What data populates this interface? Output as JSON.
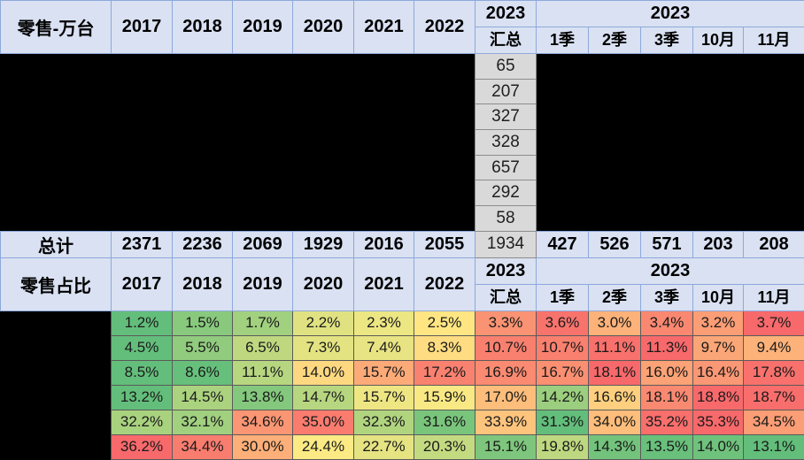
{
  "chart_data": {
    "type": "table",
    "volume_table": {
      "title": "零售-万台",
      "year_columns": [
        "2017",
        "2018",
        "2019",
        "2020",
        "2021",
        "2022"
      ],
      "summary_column": {
        "top": "2023",
        "bottom": "汇总"
      },
      "period_group_label": "2023",
      "period_columns": [
        "1季",
        "2季",
        "3季",
        "10月",
        "11月"
      ],
      "summary_values": [
        "65",
        "207",
        "327",
        "328",
        "657",
        "292",
        "58"
      ],
      "total_row": {
        "label": "总计",
        "years": [
          "2371",
          "2236",
          "2069",
          "1929",
          "2016",
          "2055"
        ],
        "summary": "1934",
        "periods": [
          "427",
          "526",
          "571",
          "203",
          "208"
        ]
      }
    },
    "share_table": {
      "title": "零售占比",
      "year_columns": [
        "2017",
        "2018",
        "2019",
        "2020",
        "2021",
        "2022"
      ],
      "summary_column": {
        "top": "2023",
        "bottom": "汇总"
      },
      "period_group_label": "2023",
      "period_columns": [
        "1季",
        "2季",
        "3季",
        "10月",
        "11月"
      ],
      "rows": [
        [
          "1.2%",
          "1.5%",
          "1.7%",
          "2.2%",
          "2.3%",
          "2.5%",
          "3.3%",
          "3.6%",
          "3.0%",
          "3.4%",
          "3.2%",
          "3.7%"
        ],
        [
          "4.5%",
          "5.5%",
          "6.5%",
          "7.3%",
          "7.4%",
          "8.3%",
          "10.7%",
          "10.7%",
          "11.1%",
          "11.3%",
          "9.7%",
          "9.4%"
        ],
        [
          "8.5%",
          "8.6%",
          "11.1%",
          "14.0%",
          "15.7%",
          "17.2%",
          "16.9%",
          "16.7%",
          "18.1%",
          "16.0%",
          "16.4%",
          "17.8%"
        ],
        [
          "13.2%",
          "14.5%",
          "13.8%",
          "14.7%",
          "15.7%",
          "15.9%",
          "17.0%",
          "14.2%",
          "16.6%",
          "18.1%",
          "18.8%",
          "18.7%"
        ],
        [
          "32.2%",
          "32.1%",
          "34.6%",
          "35.0%",
          "32.3%",
          "31.6%",
          "33.9%",
          "31.3%",
          "34.0%",
          "35.2%",
          "35.3%",
          "34.5%"
        ],
        [
          "36.2%",
          "34.4%",
          "30.0%",
          "24.4%",
          "22.7%",
          "20.3%",
          "15.1%",
          "19.8%",
          "14.3%",
          "13.5%",
          "14.0%",
          "13.1%"
        ]
      ]
    }
  },
  "colors": {
    "header_bg": "#d9e1f2",
    "header_border": "#8ea9db",
    "summary_bg": "#d9d9d9",
    "scale_low": "#63be7b",
    "scale_mid": "#ffeb84",
    "scale_high": "#f8696b"
  }
}
